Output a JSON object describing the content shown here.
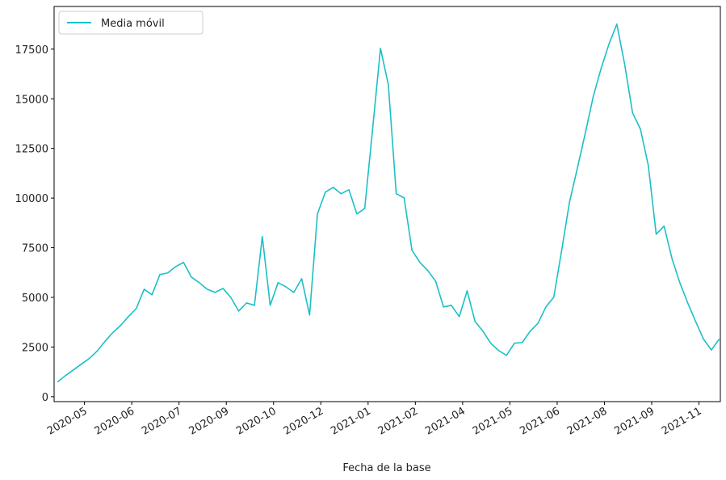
{
  "chart_data": {
    "type": "line",
    "x_label": "Fecha de la base",
    "x": [
      18364,
      18371,
      18378,
      18385,
      18392,
      18399,
      18406,
      18413,
      18420,
      18427,
      18434,
      18441,
      18448,
      18455,
      18462,
      18469,
      18476,
      18483,
      18490,
      18497,
      18504,
      18511,
      18518,
      18525,
      18532,
      18539,
      18546,
      18553,
      18560,
      18567,
      18574,
      18581,
      18588,
      18595,
      18602,
      18609,
      18616,
      18623,
      18630,
      18637,
      18644,
      18651,
      18658,
      18665,
      18672,
      18679,
      18686,
      18693,
      18700,
      18707,
      18714,
      18721,
      18728,
      18735,
      18742,
      18749,
      18756,
      18763,
      18770,
      18777,
      18784,
      18791,
      18798,
      18805,
      18812,
      18819,
      18826,
      18833,
      18840,
      18847,
      18854,
      18861,
      18868,
      18875,
      18882,
      18889,
      18896,
      18903,
      18910,
      18917,
      18924,
      18931,
      18938,
      18945,
      18952
    ],
    "series": [
      {
        "name": "Media móvil",
        "color": "#1ac0c6",
        "values": [
          730,
          1060,
          1340,
          1630,
          1910,
          2280,
          2770,
          3220,
          3580,
          4030,
          4440,
          5410,
          5130,
          6150,
          6230,
          6550,
          6760,
          6020,
          5740,
          5410,
          5250,
          5450,
          5000,
          4310,
          4720,
          4600,
          8060,
          4600,
          5740,
          5530,
          5250,
          5940,
          4110,
          9200,
          10300,
          10540,
          10220,
          10420,
          9200,
          9480,
          13470,
          17540,
          15710,
          10220,
          10010,
          7370,
          6760,
          6350,
          5820,
          4520,
          4600,
          4030,
          5330,
          3790,
          3300,
          2690,
          2320,
          2080,
          2690,
          2730,
          3300,
          3700,
          4520,
          5010,
          7370,
          9810,
          11520,
          13270,
          15100,
          16520,
          17750,
          18760,
          16730,
          14290,
          13470,
          11640,
          8180,
          8590,
          6960,
          5740,
          4720,
          3790,
          2900,
          2350,
          2900
        ]
      }
    ],
    "xlim": [
      18361,
      18953
    ],
    "xticks": [
      {
        "value": 18388,
        "label": "2020-05"
      },
      {
        "value": 18430,
        "label": "2020-06"
      },
      {
        "value": 18472,
        "label": "2020-07"
      },
      {
        "value": 18514,
        "label": "2020-09"
      },
      {
        "value": 18556,
        "label": "2020-10"
      },
      {
        "value": 18598,
        "label": "2020-12"
      },
      {
        "value": 18640,
        "label": "2021-01"
      },
      {
        "value": 18682,
        "label": "2021-02"
      },
      {
        "value": 18724,
        "label": "2021-04"
      },
      {
        "value": 18766,
        "label": "2021-05"
      },
      {
        "value": 18808,
        "label": "2021-06"
      },
      {
        "value": 18850,
        "label": "2021-08"
      },
      {
        "value": 18892,
        "label": "2021-09"
      },
      {
        "value": 18934,
        "label": "2021-11"
      }
    ],
    "ylim": [
      -250,
      19650
    ],
    "yticks": [
      0,
      2500,
      5000,
      7500,
      10000,
      12500,
      15000,
      17500
    ],
    "legend": "upper left"
  }
}
